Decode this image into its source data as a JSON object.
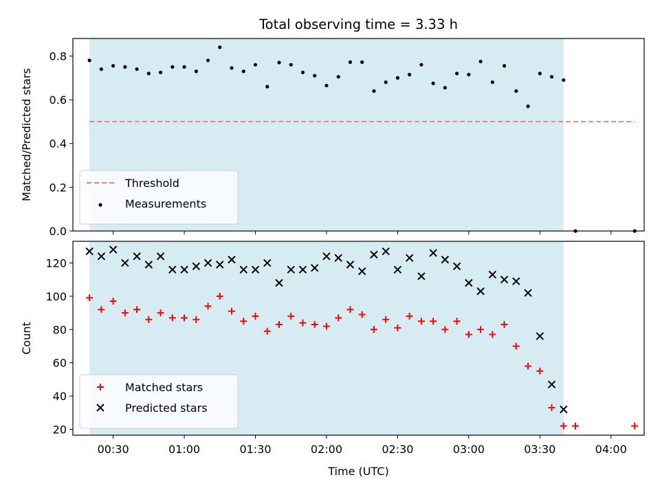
{
  "chart_data": [
    {
      "type": "scatter",
      "title": "Total observing time = 3.33 h",
      "ylabel": "Matched/Predicted stars",
      "xlabel": "",
      "xlim": [
        "00:13",
        "04:14"
      ],
      "ylim": [
        0,
        0.88
      ],
      "yticks": [
        0.0,
        0.2,
        0.4,
        0.6,
        0.8
      ],
      "ytick_labels": [
        "0.0",
        "0.2",
        "0.4",
        "0.6",
        "0.8"
      ],
      "observing_span": [
        "00:20",
        "03:40"
      ],
      "legend": {
        "position": "lower-left"
      },
      "threshold": {
        "name": "Threshold",
        "value": 0.5,
        "x": [
          "00:20",
          "04:10"
        ],
        "color": "#f08080",
        "style": "dashed"
      },
      "series": [
        {
          "name": "Measurements",
          "marker": "dot",
          "color": "#000000",
          "points": [
            [
              "00:20",
              0.78
            ],
            [
              "00:25",
              0.74
            ],
            [
              "00:30",
              0.755
            ],
            [
              "00:35",
              0.75
            ],
            [
              "00:40",
              0.74
            ],
            [
              "00:45",
              0.72
            ],
            [
              "00:50",
              0.725
            ],
            [
              "00:55",
              0.75
            ],
            [
              "01:00",
              0.75
            ],
            [
              "01:05",
              0.73
            ],
            [
              "01:10",
              0.78
            ],
            [
              "01:15",
              0.84
            ],
            [
              "01:20",
              0.745
            ],
            [
              "01:25",
              0.73
            ],
            [
              "01:30",
              0.76
            ],
            [
              "01:35",
              0.66
            ],
            [
              "01:40",
              0.77
            ],
            [
              "01:45",
              0.76
            ],
            [
              "01:50",
              0.725
            ],
            [
              "01:55",
              0.71
            ],
            [
              "02:00",
              0.665
            ],
            [
              "02:05",
              0.705
            ],
            [
              "02:10",
              0.772
            ],
            [
              "02:15",
              0.772
            ],
            [
              "02:20",
              0.64
            ],
            [
              "02:25",
              0.68
            ],
            [
              "02:30",
              0.7
            ],
            [
              "02:35",
              0.715
            ],
            [
              "02:40",
              0.76
            ],
            [
              "02:45",
              0.675
            ],
            [
              "02:50",
              0.655
            ],
            [
              "02:55",
              0.72
            ],
            [
              "03:00",
              0.715
            ],
            [
              "03:05",
              0.775
            ],
            [
              "03:10",
              0.68
            ],
            [
              "03:15",
              0.755
            ],
            [
              "03:20",
              0.64
            ],
            [
              "03:25",
              0.57
            ],
            [
              "03:30",
              0.72
            ],
            [
              "03:35",
              0.705
            ],
            [
              "03:40",
              0.69
            ],
            [
              "03:45",
              0.0
            ],
            [
              "04:10",
              0.0
            ]
          ]
        }
      ]
    },
    {
      "type": "scatter",
      "title": "",
      "ylabel": "Count",
      "xlabel": "Time (UTC)",
      "xlim": [
        "00:13",
        "04:14"
      ],
      "ylim": [
        16.5,
        133
      ],
      "yticks": [
        20,
        40,
        60,
        80,
        100,
        120
      ],
      "ytick_labels": [
        "20",
        "40",
        "60",
        "80",
        "100",
        "120"
      ],
      "xticks": [
        "00:30",
        "01:00",
        "01:30",
        "02:00",
        "02:30",
        "03:00",
        "03:30",
        "04:00"
      ],
      "observing_span": [
        "00:20",
        "03:40"
      ],
      "legend": {
        "position": "lower-left"
      },
      "series": [
        {
          "name": "Matched stars",
          "marker": "plus",
          "color": "#ff0000",
          "points": [
            [
              "00:20",
              99
            ],
            [
              "00:25",
              92
            ],
            [
              "00:30",
              97
            ],
            [
              "00:35",
              90
            ],
            [
              "00:40",
              92
            ],
            [
              "00:45",
              86
            ],
            [
              "00:50",
              90
            ],
            [
              "00:55",
              87
            ],
            [
              "01:00",
              87
            ],
            [
              "01:05",
              86
            ],
            [
              "01:10",
              94
            ],
            [
              "01:15",
              100
            ],
            [
              "01:20",
              91
            ],
            [
              "01:25",
              85
            ],
            [
              "01:30",
              88
            ],
            [
              "01:35",
              79
            ],
            [
              "01:40",
              83
            ],
            [
              "01:45",
              88
            ],
            [
              "01:50",
              84
            ],
            [
              "01:55",
              83
            ],
            [
              "02:00",
              82
            ],
            [
              "02:05",
              87
            ],
            [
              "02:10",
              92
            ],
            [
              "02:15",
              89
            ],
            [
              "02:20",
              80
            ],
            [
              "02:25",
              86
            ],
            [
              "02:30",
              81
            ],
            [
              "02:35",
              88
            ],
            [
              "02:40",
              85
            ],
            [
              "02:45",
              85
            ],
            [
              "02:50",
              80
            ],
            [
              "02:55",
              85
            ],
            [
              "03:00",
              77
            ],
            [
              "03:05",
              80
            ],
            [
              "03:10",
              77
            ],
            [
              "03:15",
              83
            ],
            [
              "03:20",
              70
            ],
            [
              "03:25",
              58
            ],
            [
              "03:30",
              55
            ],
            [
              "03:35",
              33
            ],
            [
              "03:40",
              22
            ],
            [
              "03:45",
              22
            ],
            [
              "04:10",
              22
            ]
          ]
        },
        {
          "name": "Predicted stars",
          "marker": "x",
          "color": "#000000",
          "points": [
            [
              "00:20",
              127
            ],
            [
              "00:25",
              124
            ],
            [
              "00:30",
              128
            ],
            [
              "00:35",
              120
            ],
            [
              "00:40",
              124
            ],
            [
              "00:45",
              119
            ],
            [
              "00:50",
              124
            ],
            [
              "00:55",
              116
            ],
            [
              "01:00",
              116
            ],
            [
              "01:05",
              118
            ],
            [
              "01:10",
              120
            ],
            [
              "01:15",
              119
            ],
            [
              "01:20",
              122
            ],
            [
              "01:25",
              116
            ],
            [
              "01:30",
              116
            ],
            [
              "01:35",
              120
            ],
            [
              "01:40",
              108
            ],
            [
              "01:45",
              116
            ],
            [
              "01:50",
              116
            ],
            [
              "01:55",
              117
            ],
            [
              "02:00",
              124
            ],
            [
              "02:05",
              123
            ],
            [
              "02:10",
              119
            ],
            [
              "02:15",
              115
            ],
            [
              "02:20",
              125
            ],
            [
              "02:25",
              127
            ],
            [
              "02:30",
              116
            ],
            [
              "02:35",
              123
            ],
            [
              "02:40",
              112
            ],
            [
              "02:45",
              126
            ],
            [
              "02:50",
              122
            ],
            [
              "02:55",
              118
            ],
            [
              "03:00",
              108
            ],
            [
              "03:05",
              103
            ],
            [
              "03:10",
              113
            ],
            [
              "03:15",
              110
            ],
            [
              "03:20",
              109
            ],
            [
              "03:25",
              102
            ],
            [
              "03:30",
              76
            ],
            [
              "03:35",
              47
            ],
            [
              "03:40",
              32
            ]
          ]
        }
      ]
    }
  ]
}
